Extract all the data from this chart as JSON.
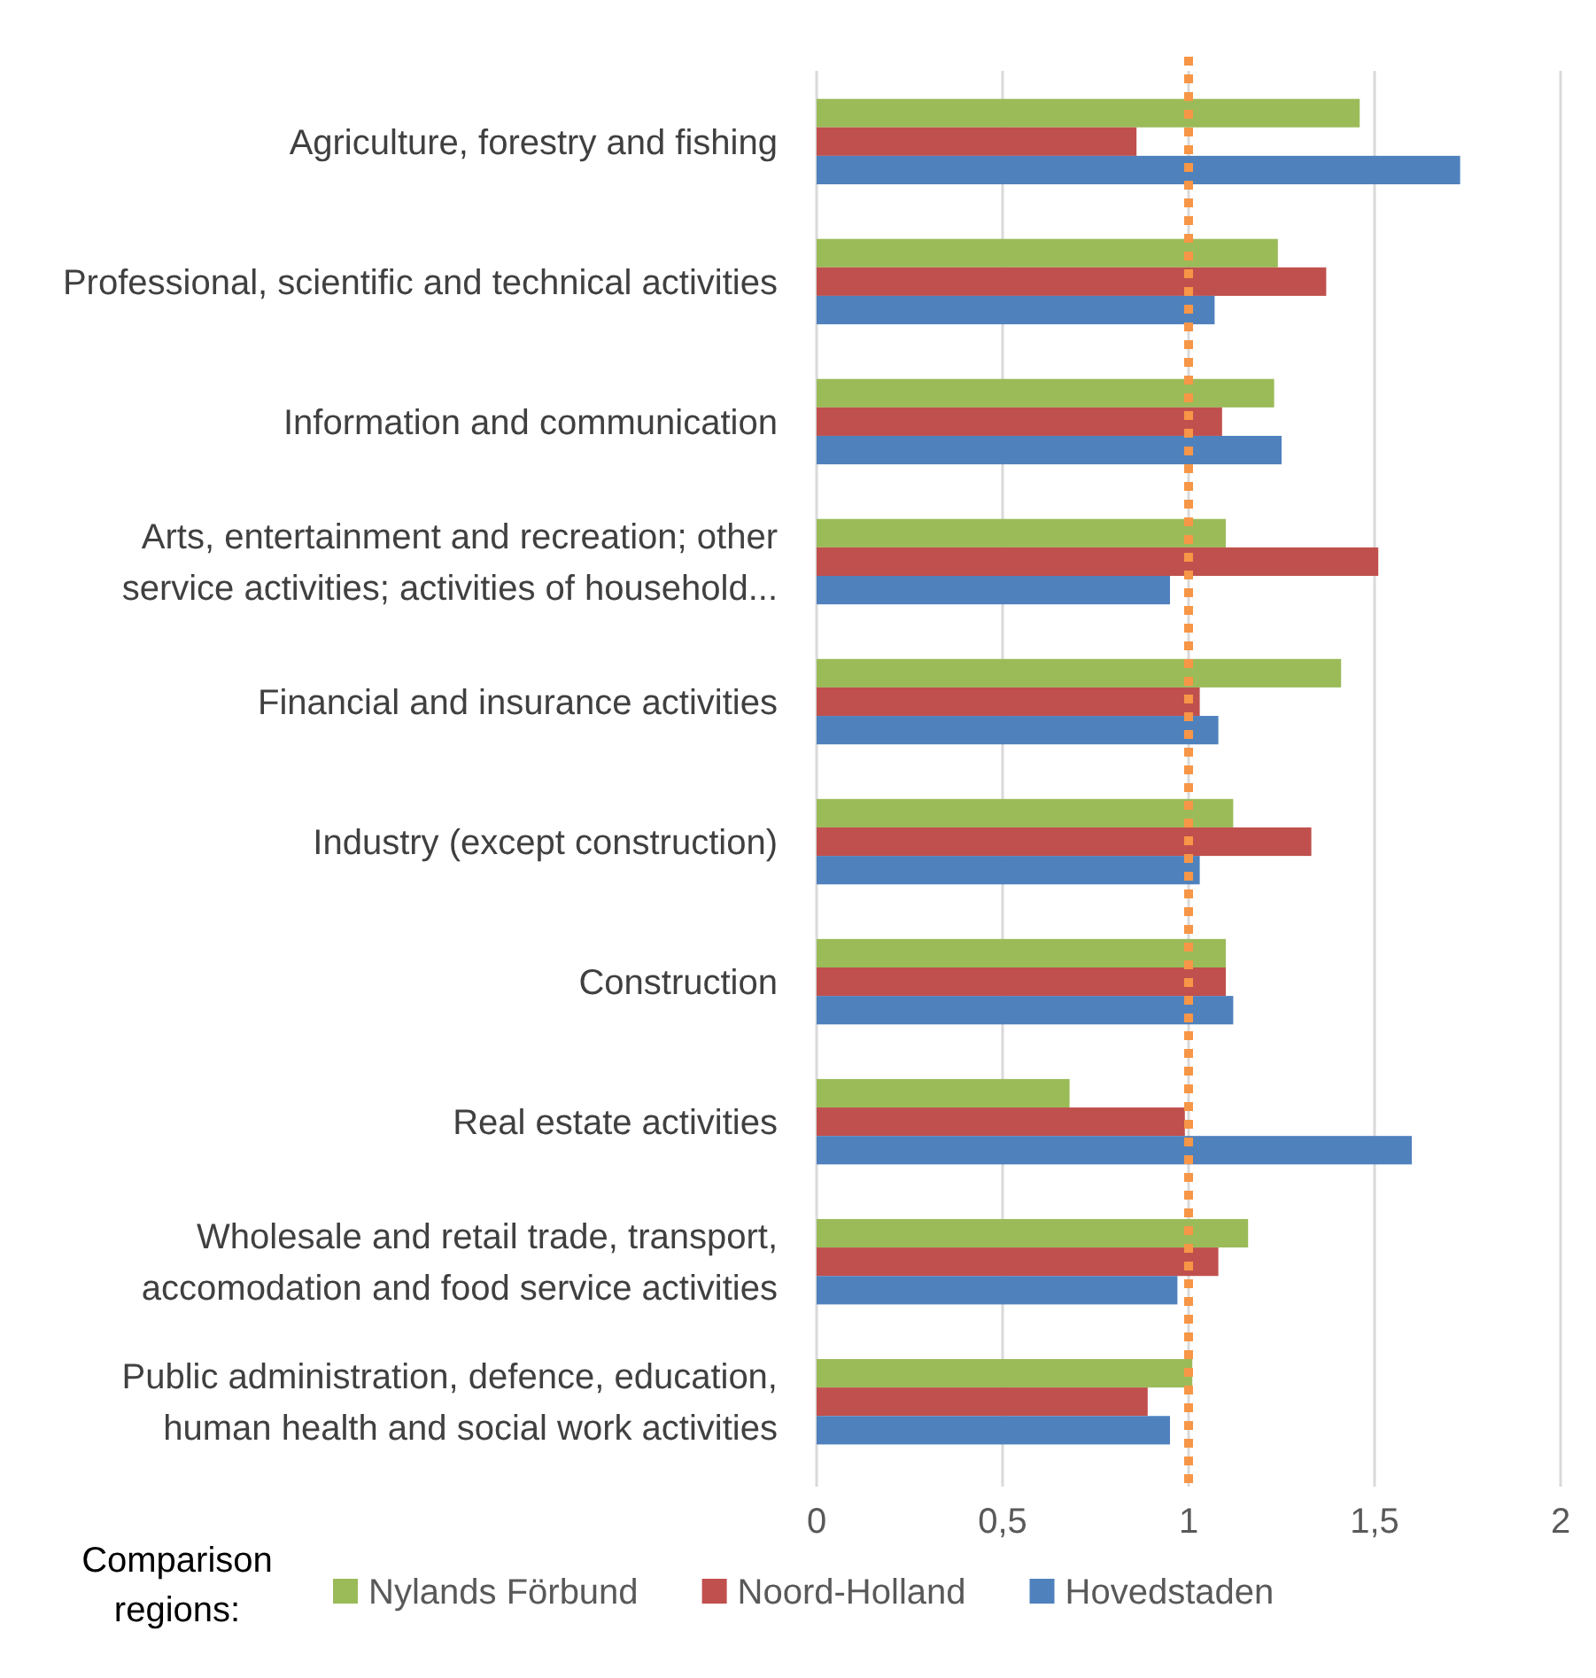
{
  "chart_data": {
    "type": "bar",
    "orientation": "horizontal",
    "categories": [
      "Agriculture, forestry and fishing",
      "Professional, scientific and technical activities",
      "Information and communication",
      "Arts, entertainment and recreation; other service activities; activities of household...",
      "Financial and insurance activities",
      "Industry (except construction)",
      "Construction",
      "Real estate activities",
      "Wholesale and retail trade, transport, accomodation and food service activities",
      "Public administration, defence, education, human health and social work activities"
    ],
    "series": [
      {
        "name": "Nylands Förbund",
        "color": "#9bbb59",
        "values": [
          1.46,
          1.24,
          1.23,
          1.1,
          1.41,
          1.12,
          1.1,
          0.68,
          1.16,
          1.01
        ]
      },
      {
        "name": "Noord-Holland",
        "color": "#c0504d",
        "values": [
          0.86,
          1.37,
          1.09,
          1.51,
          1.03,
          1.33,
          1.1,
          0.99,
          1.08,
          0.89
        ]
      },
      {
        "name": "Hovedstaden",
        "color": "#4f81bd",
        "values": [
          1.73,
          1.07,
          1.25,
          0.95,
          1.08,
          1.03,
          1.12,
          1.6,
          0.97,
          0.95
        ]
      }
    ],
    "xlim": [
      0,
      2
    ],
    "xticks": [
      0,
      {
        "value": 0.5,
        "label": "0,5"
      },
      1,
      {
        "value": 1.5,
        "label": "1,5"
      },
      2
    ],
    "grid": "x",
    "ref_lines": [
      {
        "axis": "x",
        "value": 1,
        "color": "#f79646",
        "line_style": "dotted"
      }
    ],
    "legend": "bottom",
    "legend_title": "Comparison regions:"
  }
}
